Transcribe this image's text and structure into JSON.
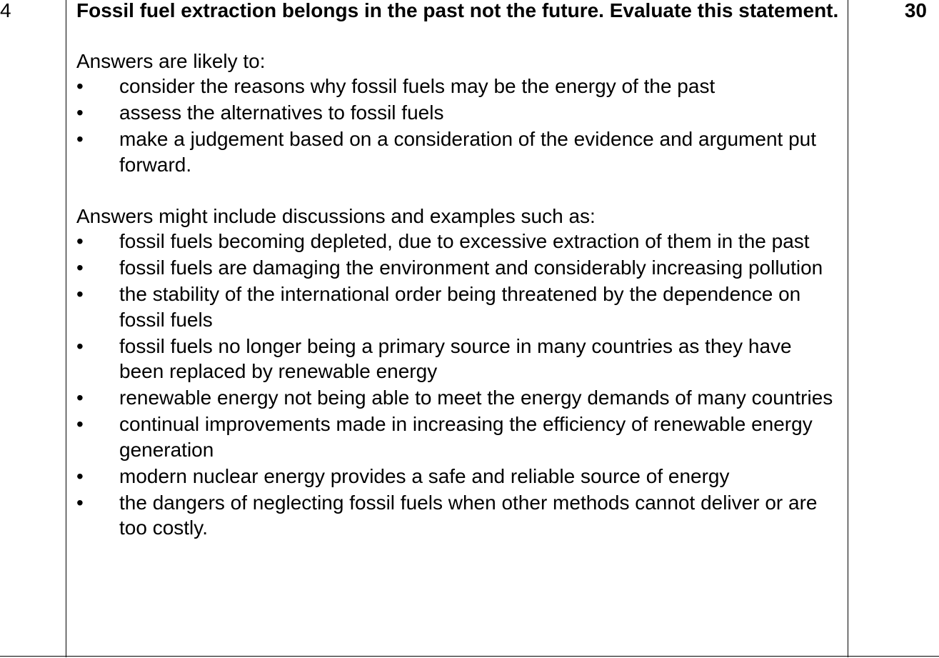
{
  "question_number": "4",
  "marks": "30",
  "question": "Fossil fuel extraction belongs in the past not the future. Evaluate this statement.",
  "bullet_symbol": "•",
  "likely": {
    "intro": "Answers are likely to:",
    "items": [
      "consider the reasons why fossil fuels may be the energy of the past",
      "assess the alternatives to fossil fuels",
      "make a judgement based on a consideration of the evidence and argument put forward."
    ]
  },
  "might_include": {
    "intro": "Answers might include discussions and examples such as:",
    "items": [
      "fossil fuels becoming depleted, due to excessive extraction of them in the past",
      "fossil fuels are damaging the environment and considerably increasing pollution",
      "the stability of the international order being threatened by the dependence on fossil fuels",
      "fossil fuels no longer being a primary source in many countries as they have been replaced by renewable energy",
      "renewable energy not being able to meet the energy demands of many countries",
      "continual improvements made in increasing the efficiency of renewable energy generation",
      "modern nuclear energy provides a safe and reliable source of energy",
      "the dangers of neglecting fossil fuels when other methods cannot deliver or are too costly."
    ]
  }
}
